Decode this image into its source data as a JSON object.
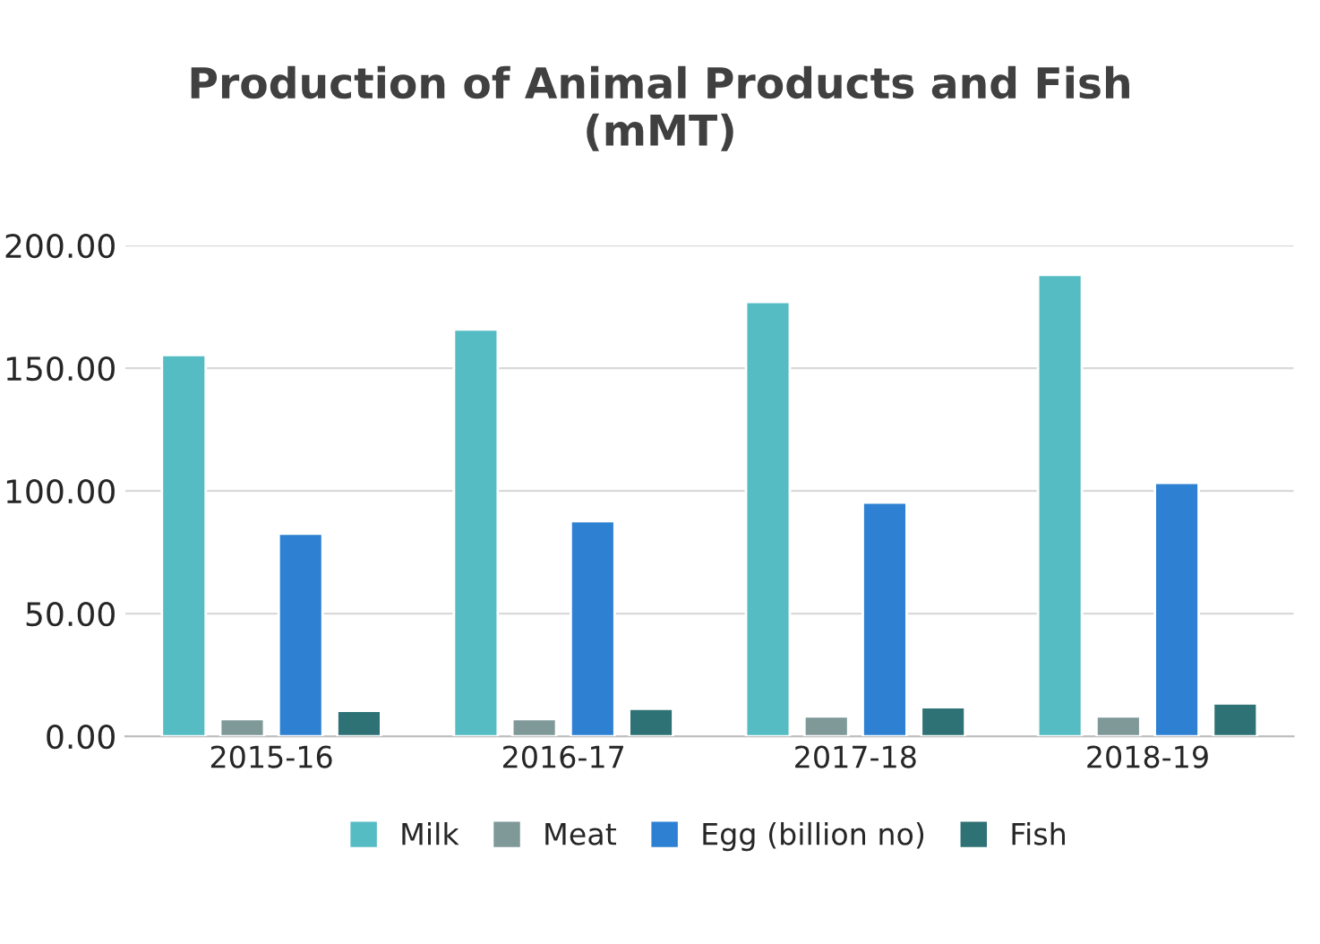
{
  "chart_data": {
    "type": "bar",
    "title": "Production of Animal Products and Fish\n(mMT)",
    "categories": [
      "2015-16",
      "2016-17",
      "2017-18",
      "2018-19"
    ],
    "series": [
      {
        "name": "Milk",
        "color": "#55bcc4",
        "values": [
          155.4,
          165.8,
          177.0,
          188.0
        ]
      },
      {
        "name": "Meat",
        "color": "#7f9898",
        "values": [
          7.0,
          7.0,
          8.1,
          8.1
        ]
      },
      {
        "name": "Egg (billion no)",
        "color": "#2d80d2",
        "values": [
          82.6,
          87.7,
          95.2,
          103.3
        ]
      },
      {
        "name": "Fish",
        "color": "#2f7275",
        "values": [
          10.4,
          11.2,
          11.9,
          13.4
        ]
      }
    ],
    "ylim": [
      0,
      200
    ],
    "yticks": [
      {
        "value": 0,
        "label": "0.00"
      },
      {
        "value": 50,
        "label": "50.00"
      },
      {
        "value": 100,
        "label": "100.00"
      },
      {
        "value": 150,
        "label": "150.00"
      },
      {
        "value": 200,
        "label": "200.00"
      }
    ],
    "grid": "y",
    "legend": "bottom"
  }
}
